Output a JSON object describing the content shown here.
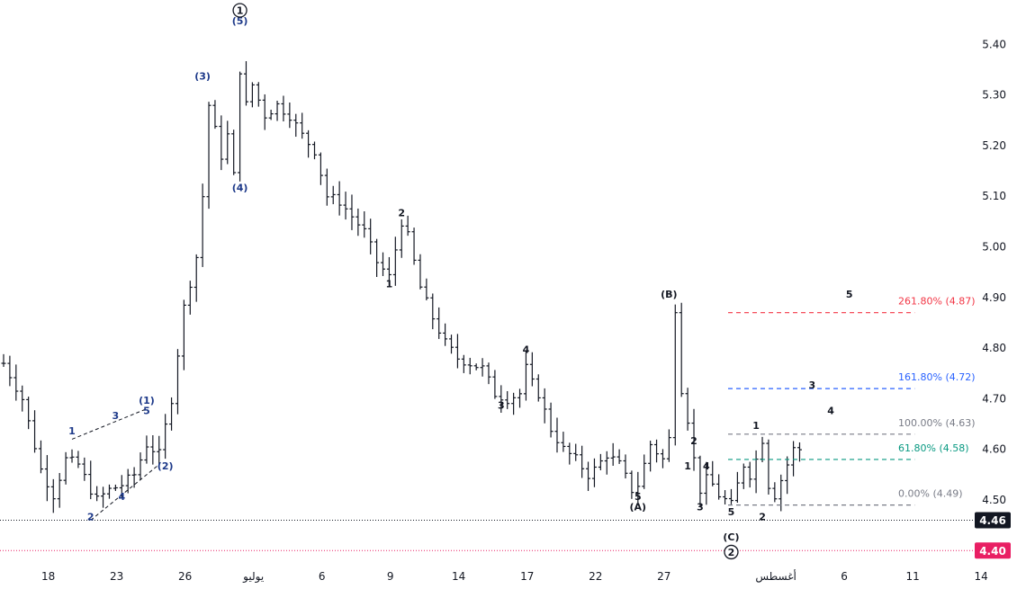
{
  "chart_data": {
    "type": "ohlc",
    "y_axis": {
      "ticks": [
        4.5,
        4.6,
        4.7,
        4.8,
        4.9,
        5.0,
        5.1,
        5.2,
        5.3,
        5.4
      ],
      "range": [
        4.36,
        5.47
      ]
    },
    "x_axis": {
      "ticks": [
        {
          "label": "18",
          "bar": 4
        },
        {
          "label": "23",
          "bar": 15
        },
        {
          "label": "26",
          "bar": 26
        },
        {
          "label": "يوليو",
          "bar": 37
        },
        {
          "label": "6",
          "bar": 48
        },
        {
          "label": "9",
          "bar": 59
        },
        {
          "label": "14",
          "bar": 70
        },
        {
          "label": "17",
          "bar": 81
        },
        {
          "label": "22",
          "bar": 92
        },
        {
          "label": "27",
          "bar": 103
        },
        {
          "label": "أغسطس",
          "bar": 121
        },
        {
          "label": "6",
          "bar": 132
        },
        {
          "label": "11",
          "bar": 143
        },
        {
          "label": "14",
          "bar": 154
        }
      ]
    },
    "price_path": [
      [
        0,
        4.77
      ],
      [
        3,
        4.7
      ],
      [
        6,
        4.56
      ],
      [
        8,
        4.51
      ],
      [
        10,
        4.58
      ],
      [
        12,
        4.57
      ],
      [
        14,
        4.52
      ],
      [
        15,
        4.5
      ],
      [
        17,
        4.52
      ],
      [
        19,
        4.53
      ],
      [
        21,
        4.55
      ],
      [
        23,
        4.61
      ],
      [
        25,
        4.59
      ],
      [
        27,
        4.7
      ],
      [
        29,
        4.88
      ],
      [
        31,
        4.98
      ],
      [
        32,
        5.1
      ],
      [
        33,
        5.28
      ],
      [
        35,
        5.18
      ],
      [
        36,
        5.22
      ],
      [
        37,
        5.14
      ],
      [
        38,
        5.35
      ],
      [
        39,
        5.28
      ],
      [
        40,
        5.32
      ],
      [
        42,
        5.26
      ],
      [
        44,
        5.28
      ],
      [
        46,
        5.26
      ],
      [
        48,
        5.22
      ],
      [
        50,
        5.19
      ],
      [
        52,
        5.1
      ],
      [
        54,
        5.09
      ],
      [
        56,
        5.06
      ],
      [
        58,
        5.03
      ],
      [
        60,
        4.97
      ],
      [
        62,
        4.94
      ],
      [
        64,
        5.05
      ],
      [
        65,
        5.02
      ],
      [
        67,
        4.92
      ],
      [
        69,
        4.86
      ],
      [
        71,
        4.81
      ],
      [
        73,
        4.78
      ],
      [
        75,
        4.77
      ],
      [
        77,
        4.76
      ],
      [
        79,
        4.71
      ],
      [
        81,
        4.7
      ],
      [
        83,
        4.71
      ],
      [
        84,
        4.76
      ],
      [
        85,
        4.73
      ],
      [
        86,
        4.71
      ],
      [
        88,
        4.64
      ],
      [
        90,
        4.6
      ],
      [
        92,
        4.58
      ],
      [
        94,
        4.55
      ],
      [
        95,
        4.56
      ],
      [
        97,
        4.59
      ],
      [
        99,
        4.57
      ],
      [
        101,
        4.52
      ],
      [
        102,
        4.53
      ],
      [
        104,
        4.61
      ],
      [
        106,
        4.58
      ],
      [
        107,
        4.62
      ],
      [
        108,
        4.88
      ],
      [
        109,
        4.72
      ],
      [
        110,
        4.66
      ],
      [
        111,
        4.58
      ],
      [
        112,
        4.52
      ],
      [
        113,
        4.54
      ],
      [
        114,
        4.53
      ],
      [
        115,
        4.51
      ],
      [
        116,
        4.5
      ],
      [
        117,
        4.49
      ],
      [
        118,
        4.53
      ],
      [
        119,
        4.57
      ],
      [
        120,
        4.55
      ],
      [
        121,
        4.58
      ],
      [
        122,
        4.62
      ],
      [
        123,
        4.53
      ],
      [
        124,
        4.51
      ],
      [
        125,
        4.54
      ],
      [
        126,
        4.57
      ],
      [
        127,
        4.6
      ],
      [
        128,
        4.6
      ]
    ],
    "labels": {
      "circled": [
        {
          "text": "1",
          "bar": 38,
          "price": 5.46
        },
        {
          "text": "2",
          "bar": 117,
          "price": 4.39
        }
      ],
      "minor_blue": [
        {
          "text": "(5)",
          "bar": 38,
          "price": 5.44
        },
        {
          "text": "(3)",
          "bar": 32,
          "price": 5.33
        },
        {
          "text": "(4)",
          "bar": 38,
          "price": 5.11
        },
        {
          "text": "(1)",
          "bar": 23,
          "price": 4.69
        },
        {
          "text": "(2)",
          "bar": 26,
          "price": 4.56
        },
        {
          "text": "1",
          "bar": 11,
          "price": 4.63
        },
        {
          "text": "2",
          "bar": 14,
          "price": 4.46
        },
        {
          "text": "3",
          "bar": 18,
          "price": 4.66
        },
        {
          "text": "4",
          "bar": 19,
          "price": 4.5
        },
        {
          "text": "5",
          "bar": 23,
          "price": 4.67
        }
      ],
      "minor_black": [
        {
          "text": "2",
          "bar": 64,
          "price": 5.06
        },
        {
          "text": "1",
          "bar": 62,
          "price": 4.92
        },
        {
          "text": "3",
          "bar": 80,
          "price": 4.68
        },
        {
          "text": "4",
          "bar": 84,
          "price": 4.79
        },
        {
          "text": "5",
          "bar": 102,
          "price": 4.5
        },
        {
          "text": "(A)",
          "bar": 102,
          "price": 4.48
        },
        {
          "text": "(B)",
          "bar": 107,
          "price": 4.9
        },
        {
          "text": "1",
          "bar": 110,
          "price": 4.56
        },
        {
          "text": "2",
          "bar": 111,
          "price": 4.61
        },
        {
          "text": "3",
          "bar": 112,
          "price": 4.48
        },
        {
          "text": "4",
          "bar": 113,
          "price": 4.56
        },
        {
          "text": "5",
          "bar": 117,
          "price": 4.47
        },
        {
          "text": "(C)",
          "bar": 117,
          "price": 4.42
        },
        {
          "text": "1",
          "bar": 121,
          "price": 4.64
        },
        {
          "text": "2",
          "bar": 122,
          "price": 4.46
        },
        {
          "text": "3",
          "bar": 130,
          "price": 4.72
        },
        {
          "text": "4",
          "bar": 133,
          "price": 4.67
        },
        {
          "text": "5",
          "bar": 136,
          "price": 4.9
        }
      ]
    },
    "fibonacci": {
      "x_start_bar": 116.5,
      "x_end_bar": 146.5,
      "levels": [
        {
          "label": "261.80% (4.87)",
          "price": 4.87,
          "color": "#f23645"
        },
        {
          "label": "161.80% (4.72)",
          "price": 4.72,
          "color": "#2962ff"
        },
        {
          "label": "100.00% (4.63)",
          "price": 4.63,
          "color": "#787b86"
        },
        {
          "label": "61.80% (4.58)",
          "price": 4.58,
          "color": "#089981"
        },
        {
          "label": "0.00% (4.49)",
          "price": 4.49,
          "color": "#787b86"
        }
      ]
    },
    "price_tags": [
      {
        "text": "4.46",
        "price": 4.46,
        "color": "#131722",
        "line": "dotted-black"
      },
      {
        "text": "4.40",
        "price": 4.4,
        "color": "#e91e63",
        "line": "dotted-red"
      }
    ],
    "colors": {
      "bars": "#131722",
      "blue_labels": "#1e3a8a",
      "black_labels": "#131722"
    }
  }
}
